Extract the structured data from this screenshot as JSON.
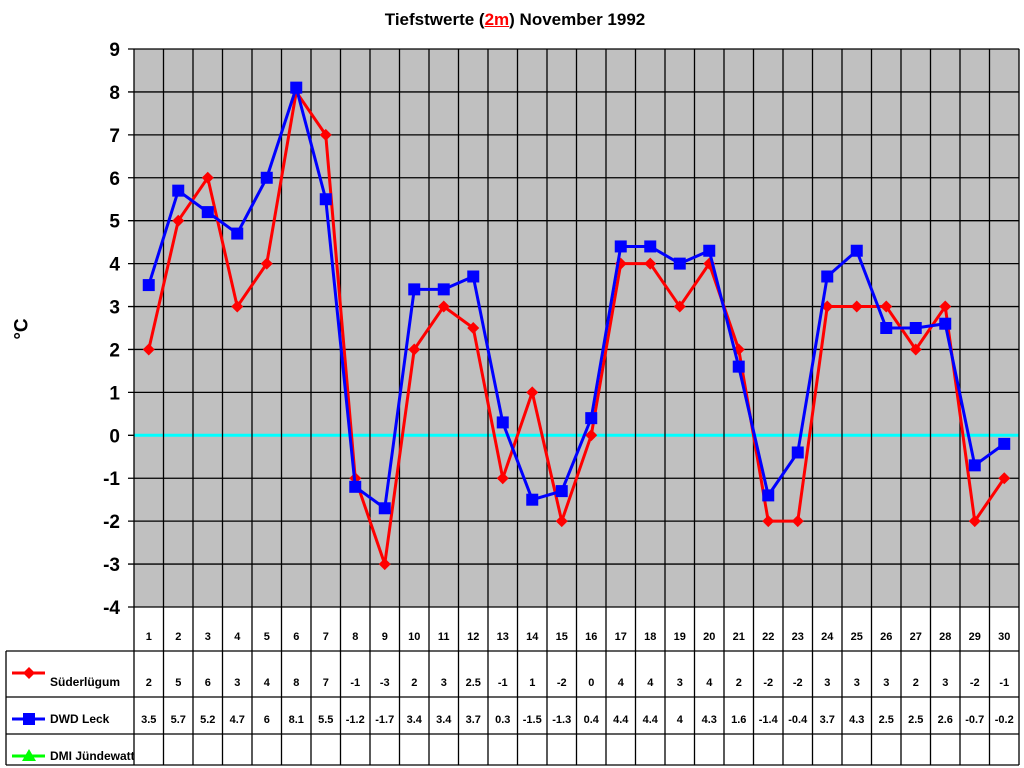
{
  "title": {
    "prefix": "Tiefstwerte (",
    "accent": "2m",
    "suffix": ") November 1992"
  },
  "colors": {
    "plot_bg": "#c0c0c0",
    "grid": "#000000",
    "zero_line": "#00ffff",
    "series1": "#ff0000",
    "series2": "#0000ff",
    "series3": "#00ff00"
  },
  "chart_data": {
    "type": "line",
    "title": "Tiefstwerte (2m) November 1992",
    "xlabel": "",
    "ylabel": "°C",
    "ylim": [
      -4,
      9
    ],
    "yticks": [
      9,
      8,
      7,
      6,
      5,
      4,
      3,
      2,
      1,
      0,
      -1,
      -2,
      -3,
      -4
    ],
    "grid": true,
    "legend_position": "bottom-left data table",
    "categories": [
      "1",
      "2",
      "3",
      "4",
      "5",
      "6",
      "7",
      "8",
      "9",
      "10",
      "11",
      "12",
      "13",
      "14",
      "15",
      "16",
      "17",
      "18",
      "19",
      "20",
      "21",
      "22",
      "23",
      "24",
      "25",
      "26",
      "27",
      "28",
      "29",
      "30"
    ],
    "series": [
      {
        "name": "Süderlügum",
        "marker": "diamond",
        "color": "#ff0000",
        "values": [
          2,
          5,
          6,
          3,
          4,
          8,
          7,
          -1,
          -3,
          2,
          3,
          2.5,
          -1,
          1,
          -2,
          0,
          4,
          4,
          3,
          4,
          2,
          -2,
          -2,
          3,
          3,
          3,
          2,
          3,
          -2,
          -1
        ]
      },
      {
        "name": "DWD Leck",
        "marker": "square",
        "color": "#0000ff",
        "values": [
          3.5,
          5.7,
          5.2,
          4.7,
          6,
          8.1,
          5.5,
          -1.2,
          -1.7,
          3.4,
          3.4,
          3.7,
          0.3,
          -1.5,
          -1.3,
          0.4,
          4.4,
          4.4,
          4,
          4.3,
          1.6,
          -1.4,
          -0.4,
          3.7,
          4.3,
          2.5,
          2.5,
          2.6,
          -0.7,
          -0.2
        ]
      },
      {
        "name": "DMI Jündewatt",
        "marker": "triangle",
        "color": "#00ff00",
        "values": []
      }
    ]
  }
}
